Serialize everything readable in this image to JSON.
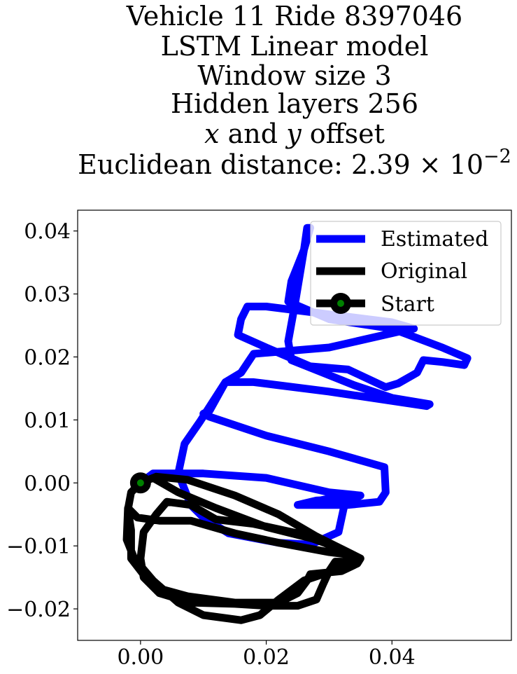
{
  "chart_data": {
    "type": "line",
    "title": {
      "line1": "Vehicle 11 Ride 8397046",
      "line2": "LSTM Linear model",
      "line3": "Window size 3",
      "line4": "Hidden layers 256",
      "line5_var_x": "x",
      "line5_and": " and ",
      "line5_var_y": "y",
      "line5_rest": " offset",
      "line6_prefix": "Euclidean distance: 2.39",
      "line6_times": " × 10",
      "line6_exp": "−2"
    },
    "xlabel": "",
    "ylabel": "",
    "xlim": [
      -0.01,
      0.059
    ],
    "ylim": [
      -0.025,
      0.0433
    ],
    "xticks": [
      0.0,
      0.02,
      0.04
    ],
    "xtick_labels": [
      "0.00",
      "0.02",
      "0.04"
    ],
    "yticks": [
      -0.02,
      -0.01,
      0.0,
      0.01,
      0.02,
      0.03,
      0.04
    ],
    "ytick_labels": [
      "−0.02",
      "−0.01",
      "0.00",
      "0.01",
      "0.02",
      "0.03",
      "0.04"
    ],
    "grid": false,
    "legend_position": "top-right",
    "series": [
      {
        "name": "Estimated",
        "color": "#0000ff",
        "points": [
          [
            0,
            0
          ],
          [
            0.002,
            0.0015
          ],
          [
            0.01,
            0.0015
          ],
          [
            0.02,
            0.0008
          ],
          [
            0.03,
            -0.0015
          ],
          [
            0.035,
            -0.002
          ],
          [
            0.034,
            -0.0025
          ],
          [
            0.028,
            -0.0028
          ],
          [
            0.025,
            -0.0035
          ],
          [
            0.033,
            -0.0035
          ],
          [
            0.038,
            -0.003
          ],
          [
            0.039,
            -0.0015
          ],
          [
            0.0388,
            0.0025
          ],
          [
            0.03,
            0.005
          ],
          [
            0.02,
            0.0075
          ],
          [
            0.011,
            0.0105
          ],
          [
            0.01,
            0.011
          ],
          [
            0.011,
            0.0115
          ],
          [
            0.0135,
            0.016
          ],
          [
            0.018,
            0.016
          ],
          [
            0.03,
            0.0145
          ],
          [
            0.0455,
            0.0122
          ],
          [
            0.046,
            0.0125
          ],
          [
            0.04,
            0.0135
          ],
          [
            0.034,
            0.0155
          ],
          [
            0.029,
            0.0175
          ],
          [
            0.024,
            0.0195
          ],
          [
            0.0235,
            0.0225
          ],
          [
            0.0245,
            0.028
          ],
          [
            0.026,
            0.037
          ],
          [
            0.0265,
            0.0405
          ],
          [
            0.027,
            0.0405
          ],
          [
            0.026,
            0.037
          ],
          [
            0.024,
            0.032
          ],
          [
            0.0235,
            0.0288
          ],
          [
            0.03,
            0.026
          ],
          [
            0.04,
            0.0245
          ],
          [
            0.048,
            0.0215
          ],
          [
            0.052,
            0.0198
          ],
          [
            0.0515,
            0.0187
          ],
          [
            0.048,
            0.0192
          ],
          [
            0.045,
            0.0195
          ],
          [
            0.044,
            0.0175
          ],
          [
            0.041,
            0.0158
          ],
          [
            0.039,
            0.0152
          ],
          [
            0.033,
            0.018
          ],
          [
            0.027,
            0.0185
          ],
          [
            0.02,
            0.0215
          ],
          [
            0.0155,
            0.0235
          ],
          [
            0.016,
            0.026
          ],
          [
            0.017,
            0.028
          ],
          [
            0.02,
            0.028
          ],
          [
            0.04,
            0.0255
          ],
          [
            0.0435,
            0.0245
          ],
          [
            0.041,
            0.024
          ],
          [
            0.03,
            0.0215
          ],
          [
            0.018,
            0.0205
          ],
          [
            0.016,
            0.0175
          ],
          [
            0.0135,
            0.016
          ],
          [
            0.0095,
            0.0098
          ],
          [
            0.007,
            0.0062
          ],
          [
            0.006,
            0.0015
          ],
          [
            0.008,
            -0.0035
          ],
          [
            0.01,
            -0.0055
          ],
          [
            0.014,
            -0.008
          ],
          [
            0.022,
            -0.0095
          ],
          [
            0.027,
            -0.0098
          ],
          [
            0.0315,
            -0.0078
          ],
          [
            0.032,
            -0.0055
          ],
          [
            0.0325,
            -0.0032
          ],
          [
            0.03,
            -0.0025
          ],
          [
            0.025,
            -0.0035
          ]
        ]
      },
      {
        "name": "Original",
        "color": "#000000",
        "points": [
          [
            0,
            0
          ],
          [
            0.0025,
            0.001
          ],
          [
            0.0075,
            0.0005
          ],
          [
            0.015,
            -0.002
          ],
          [
            0.022,
            -0.005
          ],
          [
            0.028,
            -0.0085
          ],
          [
            0.033,
            -0.011
          ],
          [
            0.035,
            -0.012
          ],
          [
            0.0345,
            -0.0128
          ],
          [
            0.032,
            -0.014
          ],
          [
            0.027,
            -0.0145
          ],
          [
            0.0265,
            -0.0155
          ],
          [
            0.025,
            -0.0175
          ],
          [
            0.022,
            -0.019
          ],
          [
            0.015,
            -0.019
          ],
          [
            0.0075,
            -0.018
          ],
          [
            0.002,
            -0.0165
          ],
          [
            -0.0015,
            -0.012
          ],
          [
            -0.0015,
            -0.0075
          ],
          [
            -0.002,
            -0.0042
          ],
          [
            -0.0015,
            -0.0015
          ],
          [
            0,
            0
          ],
          [
            0.002,
            0.0008
          ],
          [
            0.006,
            -0.0015
          ],
          [
            0.012,
            -0.004
          ],
          [
            0.02,
            -0.007
          ],
          [
            0.028,
            -0.009
          ],
          [
            0.034,
            -0.0115
          ],
          [
            0.033,
            -0.0125
          ],
          [
            0.031,
            -0.0125
          ],
          [
            0.03,
            -0.014
          ],
          [
            0.029,
            -0.0162
          ],
          [
            0.028,
            -0.0185
          ],
          [
            0.025,
            -0.0195
          ],
          [
            0.02,
            -0.0195
          ],
          [
            0.015,
            -0.0192
          ],
          [
            0.008,
            -0.019
          ],
          [
            0.003,
            -0.0175
          ],
          [
            0.0005,
            -0.015
          ],
          [
            0,
            -0.012
          ],
          [
            0.0005,
            -0.0078
          ],
          [
            0.0025,
            -0.005
          ],
          [
            0.0042,
            -0.003
          ],
          [
            0.008,
            -0.0035
          ],
          [
            0.012,
            -0.0058
          ],
          [
            0.018,
            -0.0065
          ],
          [
            0.025,
            -0.008
          ],
          [
            0.032,
            -0.0105
          ],
          [
            0.034,
            -0.0115
          ],
          [
            0.03,
            -0.011
          ],
          [
            0.022,
            -0.0095
          ],
          [
            0.015,
            -0.008
          ],
          [
            0.008,
            -0.006
          ],
          [
            0.003,
            -0.006
          ],
          [
            -0.0005,
            -0.0055
          ],
          [
            -0.002,
            -0.004
          ],
          [
            -0.0022,
            -0.009
          ],
          [
            -0.001,
            -0.012
          ],
          [
            0.002,
            -0.0155
          ],
          [
            0.006,
            -0.019
          ],
          [
            0.01,
            -0.021
          ],
          [
            0.016,
            -0.0218
          ],
          [
            0.019,
            -0.021
          ],
          [
            0.022,
            -0.0185
          ],
          [
            0.024,
            -0.017
          ],
          [
            0.026,
            -0.0155
          ],
          [
            0.029,
            -0.0145
          ],
          [
            0.0315,
            -0.0135
          ],
          [
            0.0335,
            -0.012
          ],
          [
            0.035,
            -0.012
          ],
          [
            0.034,
            -0.0115
          ]
        ]
      }
    ],
    "start": {
      "name": "Start",
      "point": [
        0,
        0
      ],
      "color": "#000000",
      "marker_face": "#008000"
    }
  }
}
